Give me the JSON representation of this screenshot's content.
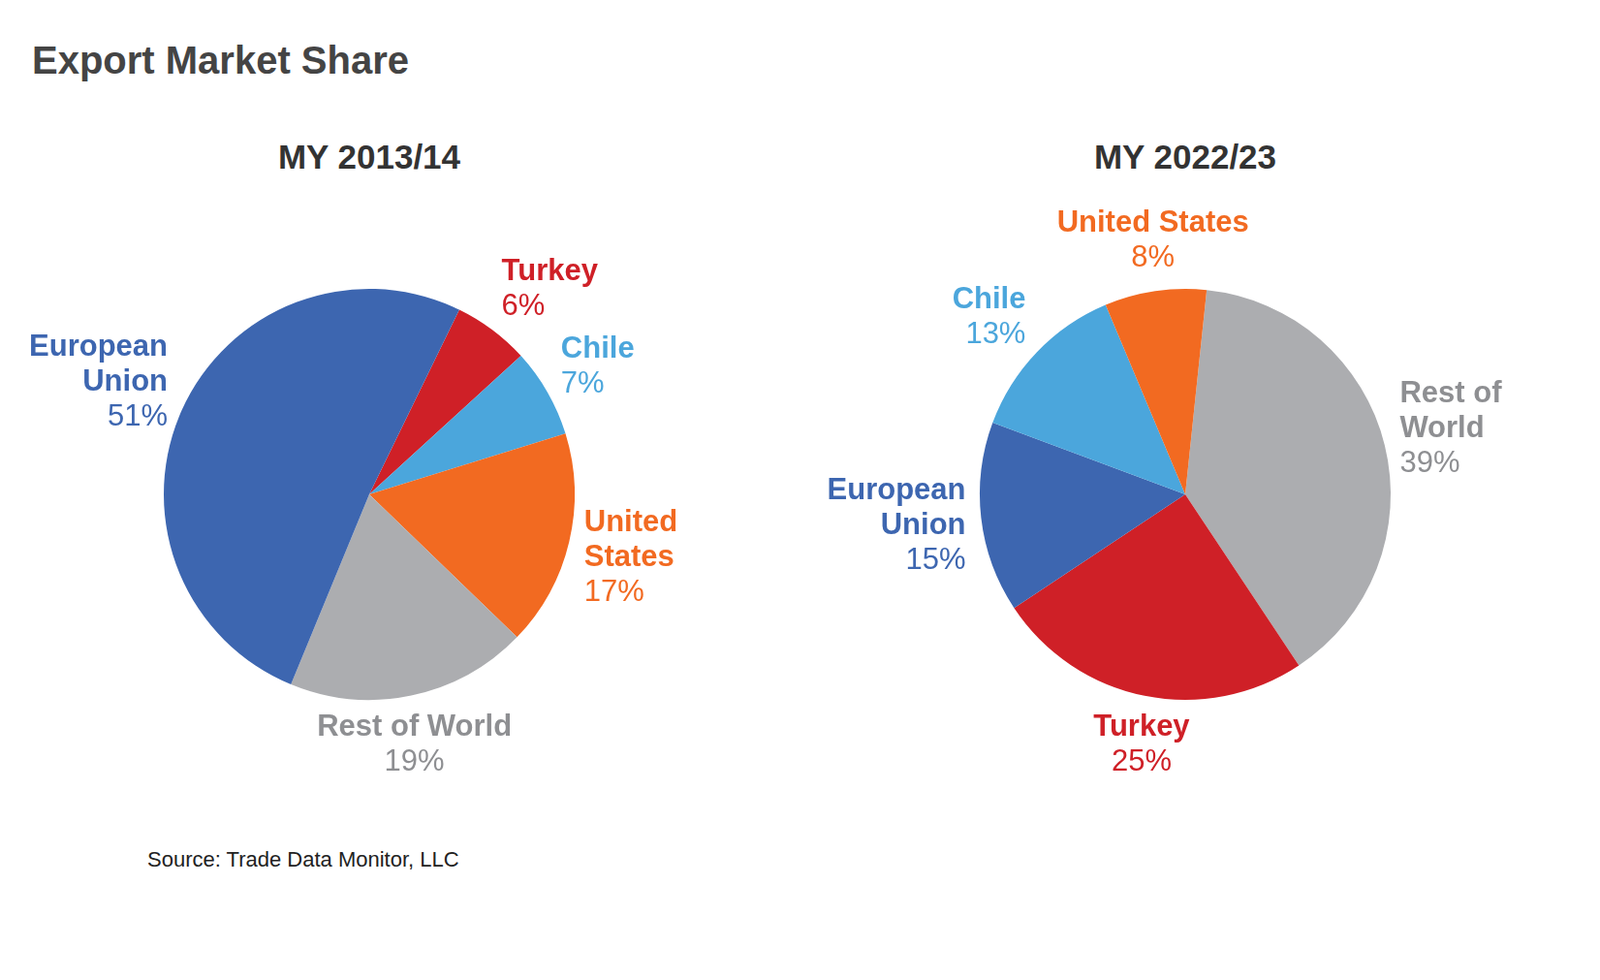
{
  "title": "Export Market Share",
  "source": "Source: Trade Data Monitor, LLC",
  "chart_data": [
    {
      "type": "pie",
      "title": "MY 2013/14",
      "categories": [
        "Turkey",
        "Chile",
        "United States",
        "Rest of World",
        "European Union"
      ],
      "values": [
        6,
        7,
        17,
        19,
        51
      ],
      "value_labels": [
        "6%",
        "7%",
        "17%",
        "19%",
        "51%"
      ],
      "colors": [
        "#cf2027",
        "#4ba6dc",
        "#f26a21",
        "#acadb0",
        "#3d66b0"
      ],
      "data_labels": true
    },
    {
      "type": "pie",
      "title": "MY 2022/23",
      "categories": [
        "Rest of World",
        "Turkey",
        "European Union",
        "Chile",
        "United States"
      ],
      "values": [
        39,
        25,
        15,
        13,
        8
      ],
      "value_labels": [
        "39%",
        "25%",
        "15%",
        "13%",
        "8%"
      ],
      "colors": [
        "#acadb0",
        "#cf2027",
        "#3d66b0",
        "#4ba6dc",
        "#f26a21"
      ],
      "data_labels": true
    }
  ]
}
